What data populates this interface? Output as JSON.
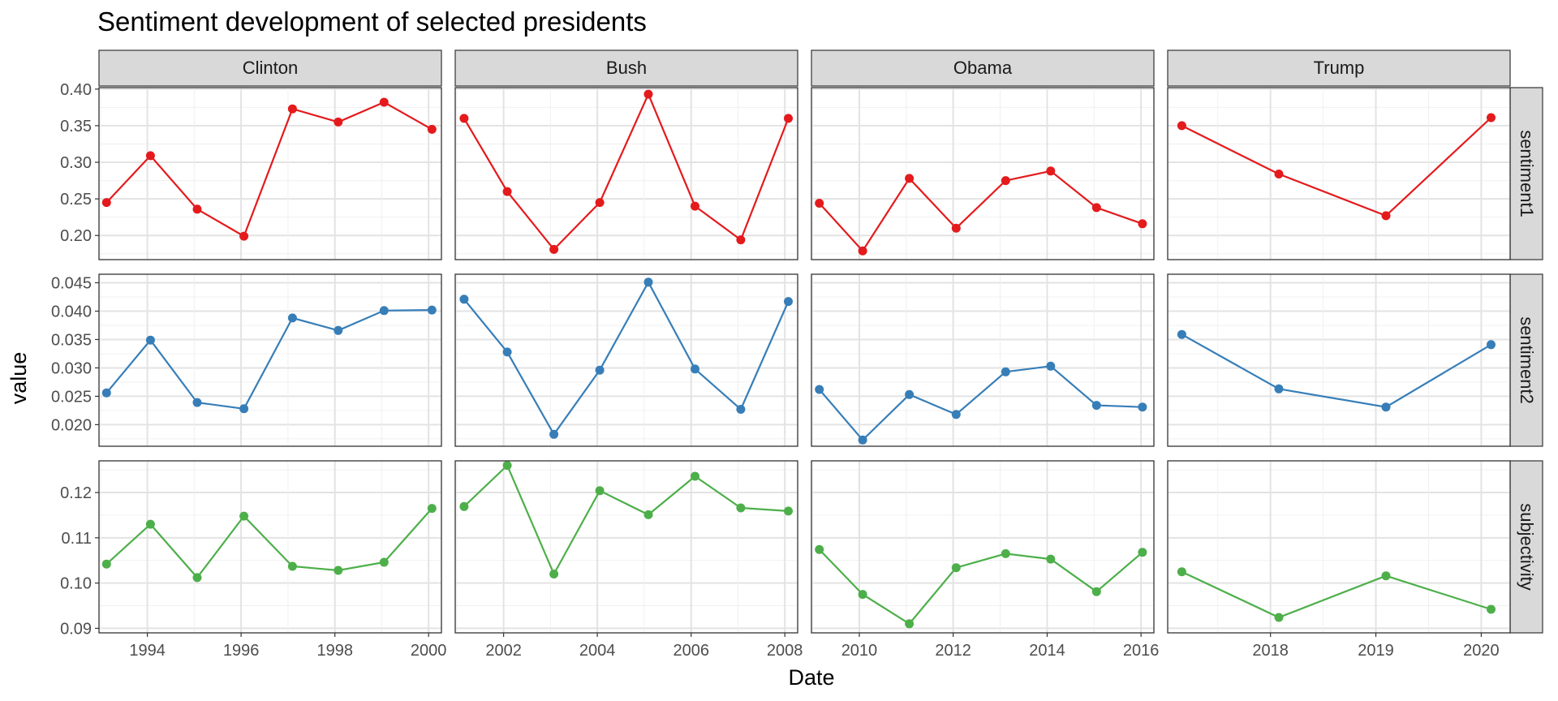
{
  "chart_data": {
    "type": "line",
    "title": "Sentiment development of selected presidents",
    "xlabel": "Date",
    "ylabel": "value",
    "grid": true,
    "legend": "none",
    "facets": {
      "columns": [
        "Clinton",
        "Bush",
        "Obama",
        "Trump"
      ],
      "rows": [
        "sentiment1",
        "sentiment2",
        "subjectivity"
      ]
    },
    "colors": {
      "sentiment1": "#e41a1c",
      "sentiment2": "#377eb8",
      "subjectivity": "#4daf4a"
    },
    "x_ticks": {
      "Clinton": [
        "1994",
        "1996",
        "1998",
        "2000"
      ],
      "Bush": [
        "2002",
        "2004",
        "2006",
        "2008"
      ],
      "Obama": [
        "2010",
        "2012",
        "2014",
        "2016"
      ],
      "Trump": [
        "2018",
        "2019",
        "2020"
      ]
    },
    "x_ranges": {
      "Clinton": [
        "1992-12-20",
        "2000-04-10"
      ],
      "Bush": [
        "2000-12-20",
        "2008-04-10"
      ],
      "Obama": [
        "2008-12-25",
        "2016-04-10"
      ],
      "Trump": [
        "2017-01-10",
        "2020-04-10"
      ]
    },
    "y_ticks": {
      "sentiment1": [
        "0.20",
        "0.25",
        "0.30",
        "0.35",
        "0.40"
      ],
      "sentiment2": [
        "0.020",
        "0.025",
        "0.030",
        "0.035",
        "0.040",
        "0.045"
      ],
      "subjectivity": [
        "0.09",
        "0.10",
        "0.11",
        "0.12"
      ]
    },
    "y_ranges": {
      "sentiment1": [
        0.167,
        0.402
      ],
      "sentiment2": [
        0.0162,
        0.0465
      ],
      "subjectivity": [
        0.089,
        0.127
      ]
    },
    "series": {
      "Clinton": {
        "dates": [
          "1993-02-17",
          "1994-01-25",
          "1995-01-24",
          "1996-01-23",
          "1997-02-04",
          "1998-01-27",
          "1999-01-19",
          "2000-01-27"
        ],
        "sentiment1": [
          0.245,
          0.309,
          0.236,
          0.199,
          0.373,
          0.355,
          0.382,
          0.345
        ],
        "sentiment2": [
          0.0256,
          0.0349,
          0.0239,
          0.0228,
          0.0388,
          0.0366,
          0.0401,
          0.0402
        ],
        "subjectivity": [
          0.1042,
          0.113,
          0.1012,
          0.1148,
          0.1037,
          0.1028,
          0.1046,
          0.1165
        ]
      },
      "Bush": {
        "dates": [
          "2001-02-27",
          "2002-01-29",
          "2003-01-28",
          "2004-01-20",
          "2005-02-02",
          "2006-01-31",
          "2007-01-23",
          "2008-01-28"
        ],
        "sentiment1": [
          0.36,
          0.26,
          0.181,
          0.245,
          0.393,
          0.24,
          0.194,
          0.36
        ],
        "sentiment2": [
          0.0421,
          0.0328,
          0.0183,
          0.0296,
          0.0451,
          0.0298,
          0.0227,
          0.0417
        ],
        "subjectivity": [
          0.1169,
          0.126,
          0.102,
          0.1204,
          0.1151,
          0.1236,
          0.1166,
          0.1159
        ]
      },
      "Obama": {
        "dates": [
          "2009-02-24",
          "2010-01-27",
          "2011-01-25",
          "2012-01-24",
          "2013-02-12",
          "2014-01-28",
          "2015-01-20",
          "2016-01-12"
        ],
        "sentiment1": [
          0.244,
          0.179,
          0.278,
          0.21,
          0.275,
          0.288,
          0.238,
          0.216
        ],
        "sentiment2": [
          0.0262,
          0.0173,
          0.0253,
          0.0218,
          0.0293,
          0.0303,
          0.0234,
          0.0231
        ],
        "subjectivity": [
          0.1074,
          0.0975,
          0.091,
          0.1034,
          0.1065,
          0.1053,
          0.0981,
          0.1068
        ]
      },
      "Trump": {
        "dates": [
          "2017-02-28",
          "2018-01-30",
          "2019-02-05",
          "2020-02-04"
        ],
        "sentiment1": [
          0.35,
          0.284,
          0.227,
          0.361
        ],
        "sentiment2": [
          0.0359,
          0.0263,
          0.0231,
          0.0341
        ],
        "subjectivity": [
          0.1025,
          0.0924,
          0.1016,
          0.0942
        ]
      }
    }
  }
}
